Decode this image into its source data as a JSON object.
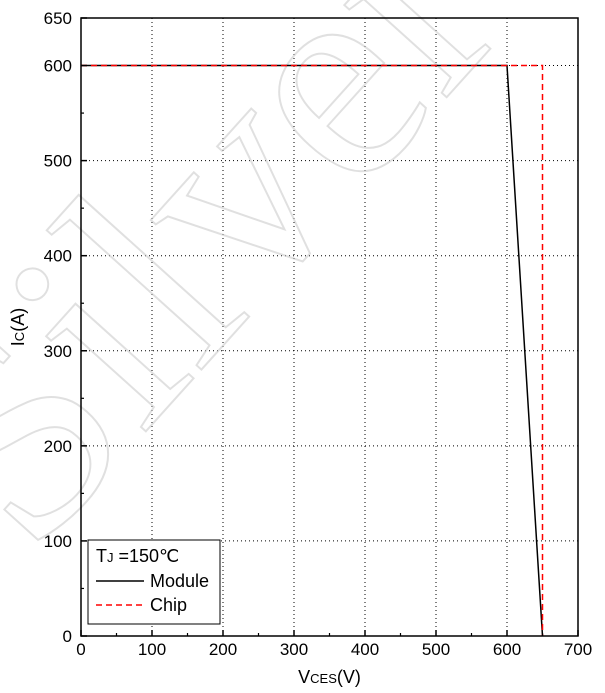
{
  "watermark": "Silver",
  "chart_data": {
    "type": "line",
    "xlabel": {
      "main": "V",
      "sub": "CES",
      "unit": "(V)"
    },
    "ylabel": {
      "main": "I",
      "sub": "C",
      "unit": "(A)"
    },
    "xlim": [
      0,
      700
    ],
    "ylim": [
      0,
      650
    ],
    "x_ticks": [
      0,
      100,
      200,
      300,
      400,
      500,
      600,
      700
    ],
    "y_ticks": [
      0,
      100,
      200,
      300,
      400,
      500,
      600,
      650
    ],
    "grid": true,
    "legend_position": "bottom-left",
    "legend_title": {
      "main": "T",
      "sub": "J",
      "rest": " =150℃"
    },
    "series": [
      {
        "name": "Module",
        "color": "#000000",
        "dash": "solid",
        "x": [
          0,
          600,
          650
        ],
        "y": [
          600,
          600,
          0
        ]
      },
      {
        "name": "Chip",
        "color": "#ff0000",
        "dash": "dashed",
        "x": [
          0,
          650,
          650
        ],
        "y": [
          600,
          600,
          0
        ]
      }
    ]
  }
}
